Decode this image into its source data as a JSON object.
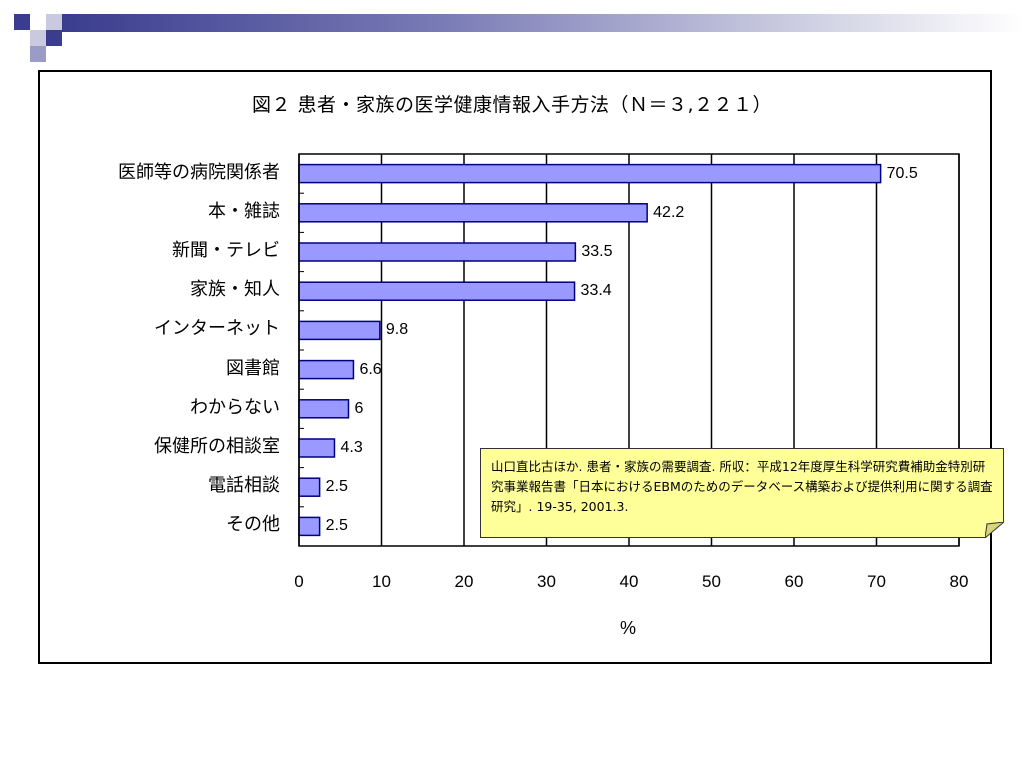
{
  "slide": {
    "colors": {
      "bar_fill": "#9999ff",
      "bar_stroke": "#000080",
      "note_bg": "#ffff99",
      "banner": "#3a3c8e"
    },
    "note": "山口直比古ほか. 患者・家族の需要調査. 所収：平成12年度厚生科学研究費補助金特別研究事業報告書「日本におけるEBMのためのデータベース構築および提供利用に関する調査研究」. 19-35, 2001.3."
  },
  "chart_data": {
    "type": "bar",
    "orientation": "horizontal",
    "title": "図２  患者・家族の医学健康情報入手方法（Ｎ＝３,２２１）",
    "xlabel": "%",
    "ylabel": "",
    "xlim": [
      0,
      80
    ],
    "x_ticks": [
      "0",
      "10",
      "20",
      "30",
      "40",
      "50",
      "60",
      "70",
      "80"
    ],
    "grid": "vertical",
    "categories": [
      "医師等の病院関係者",
      "本・雑誌",
      "新聞・テレビ",
      "家族・知人",
      "インターネット",
      "図書館",
      "わからない",
      "保健所の相談室",
      "電話相談",
      "その他"
    ],
    "values": [
      70.5,
      42.2,
      33.5,
      33.4,
      9.8,
      6.6,
      6,
      4.3,
      2.5,
      2.5
    ],
    "value_labels": [
      "70.5",
      "42.2",
      "33.5",
      "33.4",
      "9.8",
      "6.6",
      "6",
      "4.3",
      "2.5",
      "2.5"
    ]
  }
}
